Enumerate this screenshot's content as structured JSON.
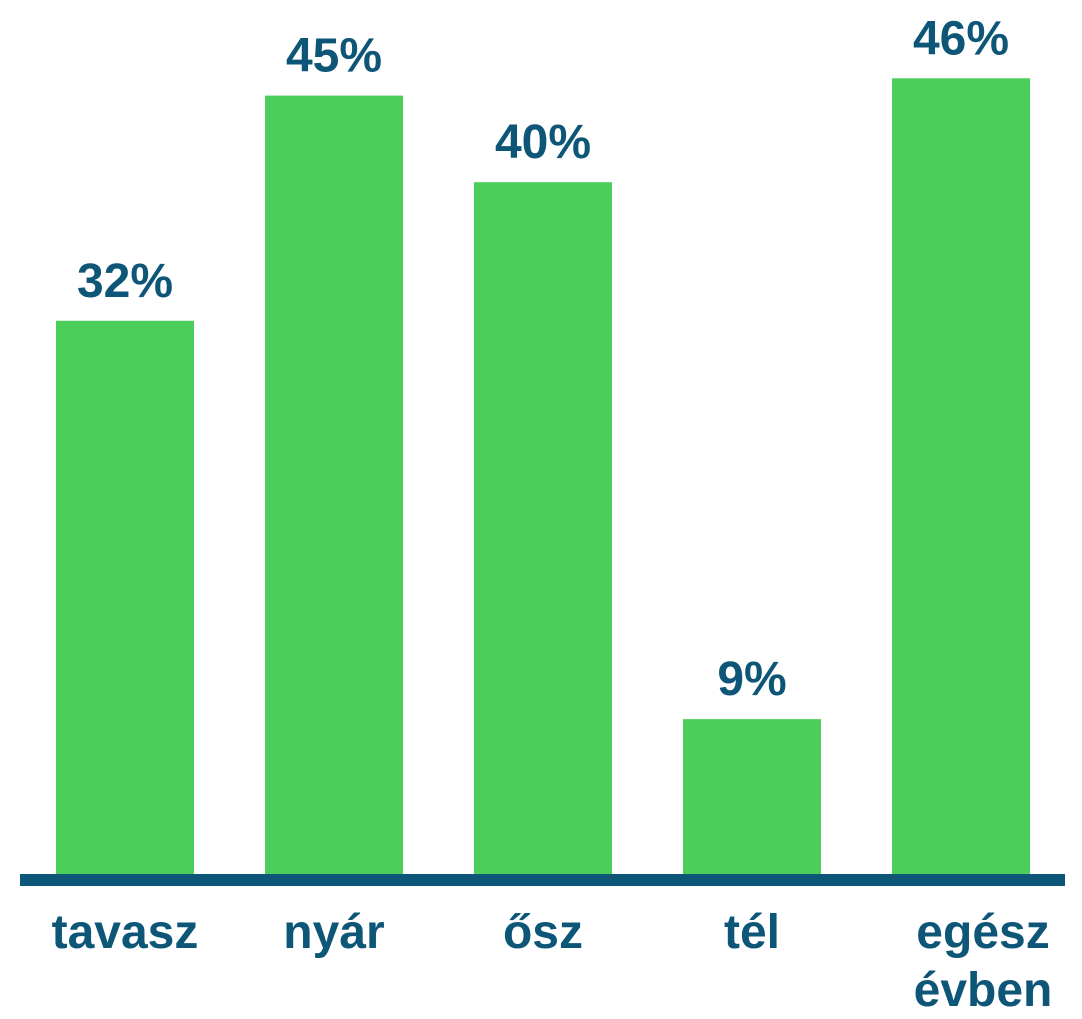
{
  "chart_data": {
    "type": "bar",
    "categories": [
      "tavasz",
      "nyár",
      "ősz",
      "tél",
      "egész évben"
    ],
    "values": [
      32,
      45,
      40,
      9,
      46
    ],
    "value_labels": [
      "32%",
      "45%",
      "40%",
      "9%",
      "46%"
    ],
    "color": "#4cce5a",
    "ylim": [
      0,
      50
    ]
  }
}
